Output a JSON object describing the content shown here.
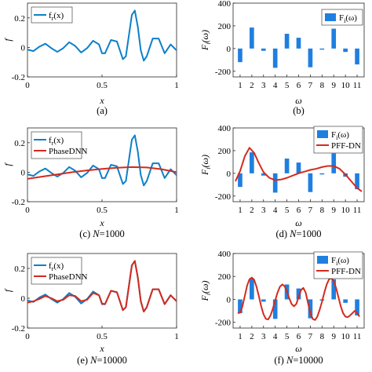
{
  "colors": {
    "blue": "#0d80c8",
    "red": "#d42a1e",
    "bar": "#1f7fe0"
  },
  "chart_data": [
    {
      "id": "a",
      "type": "line",
      "caption": "(a)",
      "xlabel": "x",
      "ylabel": "f",
      "xlim": [
        0,
        1
      ],
      "ylim": [
        -0.2,
        0.3
      ],
      "xticks": [
        "0",
        "0.5",
        "1"
      ],
      "yticks": [
        "-0.2",
        "0",
        "0.2"
      ],
      "legend": [
        "f_r(x)"
      ],
      "series": [
        {
          "name": "f_r(x)",
          "color": "blue",
          "x": [
            0,
            0.04,
            0.08,
            0.12,
            0.16,
            0.2,
            0.24,
            0.28,
            0.32,
            0.36,
            0.4,
            0.44,
            0.48,
            0.5,
            0.52,
            0.56,
            0.6,
            0.62,
            0.64,
            0.66,
            0.68,
            0.7,
            0.72,
            0.74,
            0.76,
            0.78,
            0.8,
            0.84,
            0.88,
            0.92,
            0.96,
            1.0
          ],
          "y": [
            -0.015,
            -0.025,
            0.005,
            0.025,
            -0.005,
            -0.03,
            -0.005,
            0.035,
            0.01,
            -0.035,
            -0.005,
            0.045,
            0.02,
            -0.04,
            -0.04,
            0.05,
            0.04,
            -0.02,
            -0.08,
            -0.06,
            0.08,
            0.22,
            0.25,
            0.14,
            -0.02,
            -0.09,
            -0.06,
            0.06,
            0.06,
            -0.04,
            0.02,
            -0.02
          ]
        }
      ]
    },
    {
      "id": "b",
      "type": "bar",
      "caption": "(b)",
      "xlabel": "ω",
      "ylabel": "F_i(ω)",
      "ylim": [
        -250,
        400
      ],
      "categories": [
        "1",
        "2",
        "3",
        "4",
        "5",
        "6",
        "7",
        "8",
        "9",
        "10",
        "11"
      ],
      "yticks": [
        "-200",
        "0",
        "200",
        "400"
      ],
      "legend": [
        "F_i(ω)"
      ],
      "values": [
        -120,
        185,
        -20,
        -170,
        130,
        95,
        -165,
        -10,
        175,
        -30,
        -140
      ]
    },
    {
      "id": "c",
      "type": "line",
      "caption": "(c) N=1000",
      "xlabel": "x",
      "ylabel": "f",
      "xlim": [
        0,
        1
      ],
      "ylim": [
        -0.2,
        0.3
      ],
      "xticks": [
        "0",
        "0.5",
        "1"
      ],
      "yticks": [
        "-0.2",
        "0",
        "0.2"
      ],
      "legend": [
        "f_r(x)",
        "PhaseDNN"
      ],
      "series": [
        {
          "name": "f_r(x)",
          "color": "blue",
          "x": [
            0,
            0.04,
            0.08,
            0.12,
            0.16,
            0.2,
            0.24,
            0.28,
            0.32,
            0.36,
            0.4,
            0.44,
            0.48,
            0.5,
            0.52,
            0.56,
            0.6,
            0.62,
            0.64,
            0.66,
            0.68,
            0.7,
            0.72,
            0.74,
            0.76,
            0.78,
            0.8,
            0.84,
            0.88,
            0.92,
            0.96,
            1.0
          ],
          "y": [
            -0.015,
            -0.025,
            0.005,
            0.025,
            -0.005,
            -0.03,
            -0.005,
            0.035,
            0.01,
            -0.035,
            -0.005,
            0.045,
            0.02,
            -0.04,
            -0.04,
            0.05,
            0.04,
            -0.02,
            -0.08,
            -0.06,
            0.08,
            0.22,
            0.25,
            0.14,
            -0.02,
            -0.09,
            -0.06,
            0.06,
            0.06,
            -0.04,
            0.02,
            -0.02
          ]
        },
        {
          "name": "PhaseDNN",
          "color": "red",
          "x": [
            0,
            0.1,
            0.2,
            0.3,
            0.4,
            0.5,
            0.6,
            0.7,
            0.8,
            0.9,
            1.0
          ],
          "y": [
            -0.045,
            -0.03,
            -0.015,
            0.0,
            0.012,
            0.022,
            0.03,
            0.035,
            0.032,
            0.02,
            0.0
          ]
        }
      ]
    },
    {
      "id": "d",
      "type": "bar",
      "caption": "(d) N=1000",
      "xlabel": "ω",
      "ylabel": "F_i(ω)",
      "ylim": [
        -250,
        400
      ],
      "categories": [
        "1",
        "2",
        "3",
        "4",
        "5",
        "6",
        "7",
        "8",
        "9",
        "10",
        "11"
      ],
      "yticks": [
        "-200",
        "0",
        "200",
        "400"
      ],
      "legend": [
        "F_i(ω)",
        "PFF-DN"
      ],
      "values": [
        -120,
        185,
        -20,
        -170,
        130,
        95,
        -165,
        -10,
        175,
        -30,
        -140
      ],
      "fit": {
        "name": "PFF-DN",
        "color": "red",
        "x": [
          0.6,
          1.0,
          1.4,
          1.8,
          2.2,
          2.6,
          3.0,
          3.5,
          4.0,
          4.5,
          5.0,
          5.5,
          6.0,
          6.5,
          7.0,
          7.5,
          8.0,
          8.5,
          9.0,
          9.5,
          10.0,
          10.5,
          11.0,
          11.4
        ],
        "y": [
          -70,
          20,
          150,
          225,
          180,
          90,
          10,
          -40,
          -60,
          -55,
          -40,
          -20,
          0,
          15,
          30,
          40,
          55,
          65,
          65,
          40,
          -10,
          -70,
          -130,
          -160
        ]
      }
    },
    {
      "id": "e",
      "type": "line",
      "caption": "(e) N=10000",
      "xlabel": "x",
      "ylabel": "f",
      "xlim": [
        0,
        1
      ],
      "ylim": [
        -0.2,
        0.3
      ],
      "xticks": [
        "0",
        "0.5",
        "1"
      ],
      "yticks": [
        "-0.2",
        "0",
        "0.2"
      ],
      "legend": [
        "f_r(x)",
        "PhaseDNN"
      ],
      "series": [
        {
          "name": "f_r(x)",
          "color": "blue",
          "x": [
            0,
            0.04,
            0.08,
            0.12,
            0.16,
            0.2,
            0.24,
            0.28,
            0.32,
            0.36,
            0.4,
            0.44,
            0.48,
            0.5,
            0.52,
            0.56,
            0.6,
            0.62,
            0.64,
            0.66,
            0.68,
            0.7,
            0.72,
            0.74,
            0.76,
            0.78,
            0.8,
            0.84,
            0.88,
            0.92,
            0.96,
            1.0
          ],
          "y": [
            -0.015,
            -0.025,
            0.005,
            0.025,
            -0.005,
            -0.03,
            -0.005,
            0.035,
            0.01,
            -0.035,
            -0.005,
            0.045,
            0.02,
            -0.04,
            -0.04,
            0.05,
            0.04,
            -0.02,
            -0.08,
            -0.06,
            0.08,
            0.22,
            0.25,
            0.14,
            -0.02,
            -0.09,
            -0.06,
            0.06,
            0.06,
            -0.04,
            0.02,
            -0.02
          ]
        },
        {
          "name": "PhaseDNN",
          "color": "red",
          "x": [
            0,
            0.04,
            0.08,
            0.12,
            0.16,
            0.2,
            0.24,
            0.28,
            0.32,
            0.36,
            0.4,
            0.44,
            0.48,
            0.5,
            0.52,
            0.56,
            0.6,
            0.62,
            0.64,
            0.66,
            0.68,
            0.7,
            0.72,
            0.74,
            0.76,
            0.78,
            0.8,
            0.84,
            0.88,
            0.92,
            0.96,
            1.0
          ],
          "y": [
            -0.03,
            -0.02,
            -0.005,
            0.015,
            0.0,
            -0.02,
            -0.01,
            0.02,
            0.015,
            -0.02,
            -0.01,
            0.035,
            0.02,
            -0.035,
            -0.04,
            0.05,
            0.04,
            -0.02,
            -0.08,
            -0.06,
            0.08,
            0.22,
            0.25,
            0.14,
            -0.02,
            -0.09,
            -0.06,
            0.06,
            0.06,
            -0.04,
            0.02,
            -0.02
          ]
        }
      ]
    },
    {
      "id": "f",
      "type": "bar",
      "caption": "(f) N=10000",
      "xlabel": "ω",
      "ylabel": "F_i(ω)",
      "ylim": [
        -250,
        400
      ],
      "categories": [
        "1",
        "2",
        "3",
        "4",
        "5",
        "6",
        "7",
        "8",
        "9",
        "10",
        "11"
      ],
      "yticks": [
        "-200",
        "0",
        "200",
        "400"
      ],
      "legend": [
        "F_i(ω)",
        "PFF-DN"
      ],
      "values": [
        -120,
        185,
        -20,
        -170,
        130,
        95,
        -165,
        -10,
        175,
        -30,
        -140
      ],
      "fit": {
        "name": "PFF-DN",
        "color": "red",
        "x": [
          0.8,
          1.0,
          1.2,
          1.4,
          1.6,
          1.8,
          2.0,
          2.2,
          2.4,
          2.6,
          2.8,
          3.0,
          3.2,
          3.4,
          3.6,
          3.8,
          4.0,
          4.2,
          4.4,
          4.6,
          4.8,
          5.0,
          5.2,
          5.4,
          5.6,
          5.8,
          6.0,
          6.2,
          6.4,
          6.6,
          6.8,
          7.0,
          7.2,
          7.4,
          7.6,
          7.8,
          8.0,
          8.2,
          8.4,
          8.6,
          8.8,
          9.0,
          9.2,
          9.4,
          9.6,
          9.8,
          10.0,
          10.2,
          10.4,
          10.6,
          10.8,
          11.0,
          11.2
        ],
        "y": [
          -120,
          -115,
          -60,
          30,
          120,
          175,
          190,
          170,
          110,
          30,
          -60,
          -130,
          -170,
          -175,
          -140,
          -80,
          -10,
          60,
          110,
          130,
          115,
          70,
          10,
          -40,
          -60,
          -40,
          20,
          80,
          100,
          60,
          -30,
          -120,
          -170,
          -180,
          -150,
          -90,
          -20,
          60,
          130,
          175,
          185,
          160,
          100,
          20,
          -60,
          -120,
          -150,
          -155,
          -140,
          -120,
          -100,
          -120,
          -150
        ]
      }
    }
  ]
}
